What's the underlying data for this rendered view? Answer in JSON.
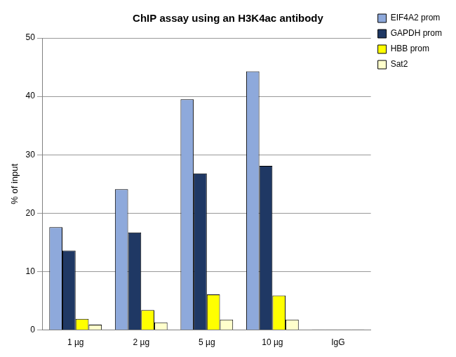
{
  "chart_data": {
    "type": "bar",
    "title": "ChIP assay using an H3K4ac antibody",
    "y_label": "% of input",
    "categories": [
      "1 µg",
      "2 µg",
      "5 µg",
      "10 µg",
      "IgG"
    ],
    "series": [
      {
        "name": "EIF4A2 prom",
        "color": "#8EA9DB",
        "values": [
          17.6,
          24.1,
          39.5,
          44.3,
          0.1
        ]
      },
      {
        "name": "GAPDH prom",
        "color": "#1F3864",
        "values": [
          13.6,
          16.7,
          26.8,
          28.1,
          0.1
        ]
      },
      {
        "name": "HBB prom",
        "color": "#FFFF00",
        "values": [
          1.9,
          3.4,
          6.1,
          5.9,
          0.1
        ]
      },
      {
        "name": "Sat2",
        "color": "#FFFFCC",
        "values": [
          0.9,
          1.3,
          1.8,
          1.8,
          0.1
        ]
      }
    ],
    "ylim": [
      0,
      50
    ],
    "yticks": [
      0,
      10,
      20,
      30,
      40,
      50
    ],
    "grid": true,
    "legend": "upper right"
  }
}
